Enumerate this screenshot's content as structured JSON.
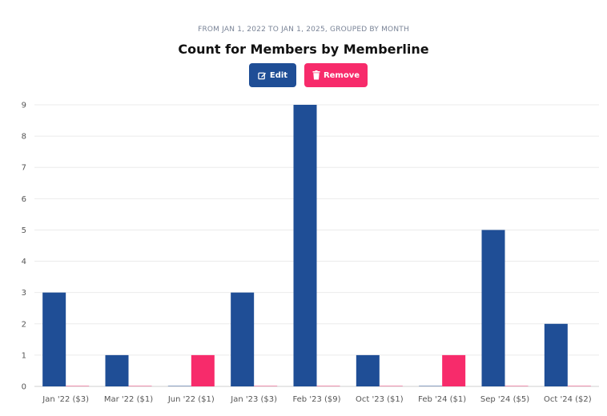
{
  "header": {
    "subtitle": "FROM JAN 1, 2022 TO JAN 1, 2025, GROUPED BY MONTH",
    "title": "Count for Members by Memberline"
  },
  "buttons": {
    "edit_label": "Edit",
    "remove_label": "Remove",
    "edit_icon": "edit-icon",
    "remove_icon": "trash-icon",
    "edit_color": "#1f4e96",
    "remove_color": "#f72b6b"
  },
  "chart_data": {
    "type": "bar",
    "categories": [
      "Jan '22 ($3)",
      "Mar '22 ($1)",
      "Jun '22 ($1)",
      "Jan '23 ($3)",
      "Feb '23 ($9)",
      "Oct '23 ($1)",
      "Feb '24 ($1)",
      "Sep '24 ($5)",
      "Oct '24 ($2)"
    ],
    "series": [
      {
        "color": "#1f4e96",
        "values": [
          3,
          1,
          0,
          3,
          9,
          1,
          0,
          5,
          2
        ]
      },
      {
        "color": "#f72b6b",
        "values": [
          0,
          0,
          1,
          0,
          0,
          0,
          1,
          0,
          0
        ]
      }
    ],
    "ylim": [
      0,
      9
    ],
    "yticks": [
      0,
      1,
      2,
      3,
      4,
      5,
      6,
      7,
      8,
      9
    ],
    "grid": true,
    "legend": "none"
  }
}
